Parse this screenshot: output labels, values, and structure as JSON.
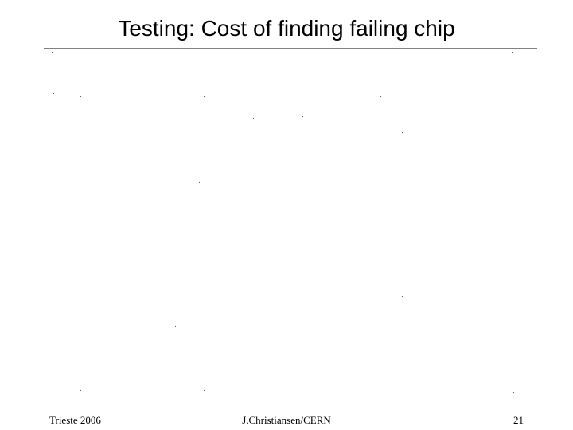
{
  "title": "Testing: Cost of finding failing chip",
  "footer": {
    "left": "Trieste 2006",
    "center": "J.Christiansen/CERN",
    "page": "21"
  }
}
